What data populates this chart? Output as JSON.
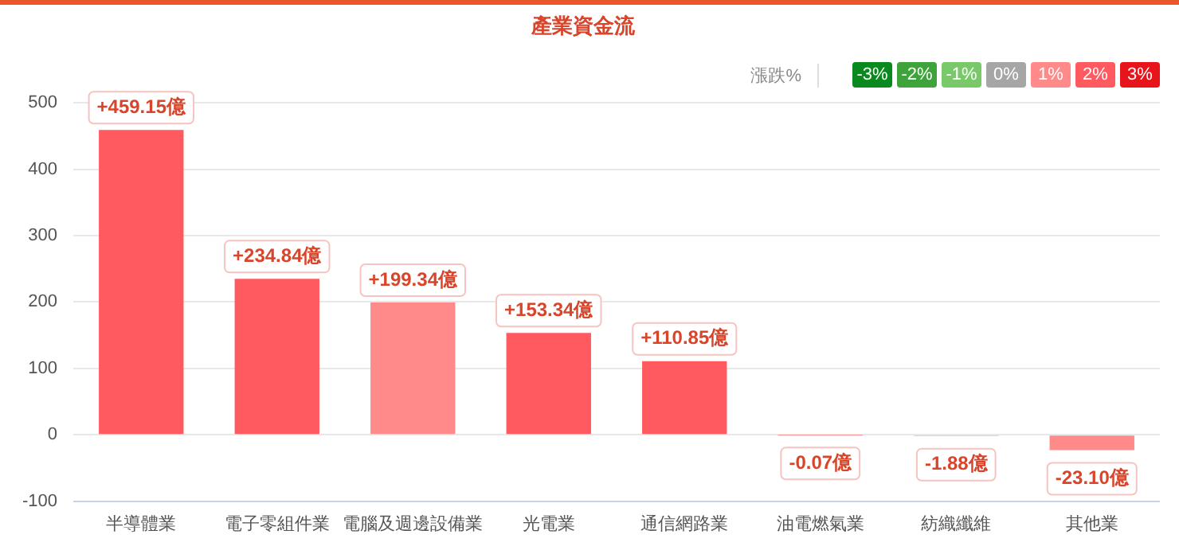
{
  "chart_data": {
    "type": "bar",
    "title": "產業資金流",
    "categories": [
      "半導體業",
      "電子零組件業",
      "電腦及週邊設備業",
      "光電業",
      "通信網路業",
      "油電燃氣業",
      "紡織纖維",
      "其他業"
    ],
    "values": [
      459.15,
      234.84,
      199.34,
      153.34,
      110.85,
      -0.07,
      -1.88,
      -23.1
    ],
    "colors": [
      "#ff5a5f",
      "#ff5a5f",
      "#ff8a8a",
      "#ff5a5f",
      "#ff5a5f",
      "#ff8a8a",
      "#ff8a8a",
      "#ff8a8a"
    ],
    "value_labels": [
      "+459.15億",
      "+234.84億",
      "+199.34億",
      "+153.34億",
      "+110.85億",
      "-0.07億",
      "-1.88億",
      "-23.10億"
    ],
    "ylim": [
      -100,
      500
    ],
    "yticks": [
      -100,
      0,
      100,
      200,
      300,
      400,
      500
    ],
    "grid": "y",
    "legend": false,
    "annotations": [
      "漲跌%",
      "-3%",
      "-2%",
      "-1%",
      "0%",
      "1%",
      "2%",
      "3%"
    ]
  }
}
